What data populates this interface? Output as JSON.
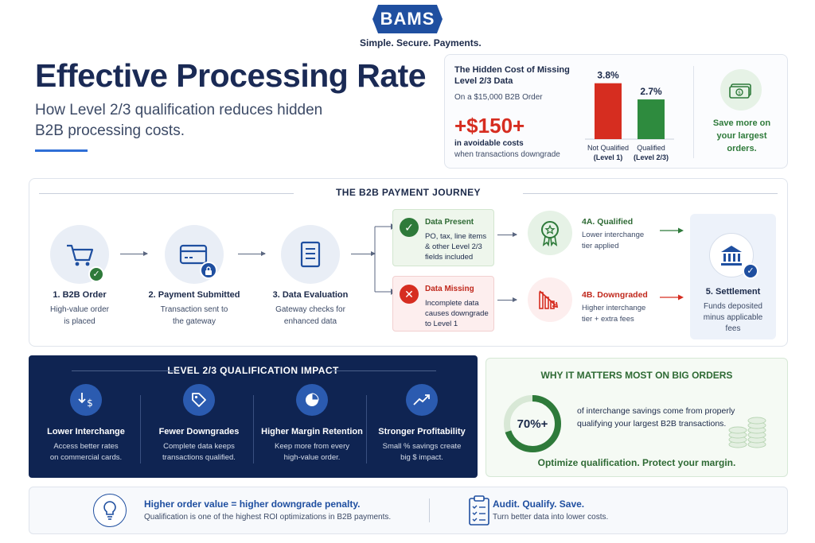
{
  "brand": {
    "logo_text": "BAMS",
    "tagline": "Simple. Secure. Payments."
  },
  "hero": {
    "title": "Effective Processing Rate",
    "subtitle": "How Level 2/3 qualification reduces hidden B2B processing costs."
  },
  "hidden_cost": {
    "title": "The Hidden Cost of Missing Level 2/3 Data",
    "order": "On a $15,000 B2B Order",
    "amount": "+$150+",
    "desc_line1": "in avoidable costs",
    "desc_line2": "when transactions downgrade",
    "save_text": "Save more on your largest orders.",
    "icon": "money-icon",
    "colors": {
      "not_qualified": "#d62d20",
      "qualified": "#2e8b3e"
    }
  },
  "chart_data": {
    "type": "bar",
    "categories": [
      "Not Qualified (Level 1)",
      "Qualified (Level 2/3)"
    ],
    "category_lines": [
      [
        "Not Qualified",
        "(Level 1)"
      ],
      [
        "Qualified",
        "(Level 2/3)"
      ]
    ],
    "values": [
      3.8,
      2.7
    ],
    "value_labels": [
      "3.8%",
      "2.7%"
    ],
    "ylim": [
      0,
      4
    ]
  },
  "journey": {
    "title": "THE B2B PAYMENT JOURNEY",
    "steps": [
      {
        "title": "1. B2B Order",
        "desc1": "High-value order",
        "desc2": "is placed",
        "icon": "cart-icon"
      },
      {
        "title": "2. Payment Submitted",
        "desc1": "Transaction sent to",
        "desc2": "the gateway",
        "icon": "card-icon"
      },
      {
        "title": "3. Data Evaluation",
        "desc1": "Gateway checks for",
        "desc2": "enhanced data",
        "icon": "document-icon"
      }
    ],
    "present": {
      "label": "Data Present",
      "line1": "PO, tax, line items",
      "line2": "& other Level 2/3",
      "line3": "fields included"
    },
    "missing": {
      "label": "Data Missing",
      "line1": "Incomplete data",
      "line2": "causes downgrade",
      "line3": "to Level 1"
    },
    "qualified": {
      "label": "4A. Qualified",
      "line1": "Lower interchange",
      "line2": "tier applied"
    },
    "downgraded": {
      "label": "4B. Downgraded",
      "line1": "Higher interchange",
      "line2": "tier + extra fees"
    },
    "settlement": {
      "title": "5. Settlement",
      "line1": "Funds deposited",
      "line2": "minus applicable",
      "line3": "fees"
    }
  },
  "impact": {
    "title": "LEVEL 2/3 QUALIFICATION IMPACT",
    "items": [
      {
        "title": "Lower Interchange",
        "desc1": "Access better rates",
        "desc2": "on commercial cards.",
        "icon": "dollar-down-icon"
      },
      {
        "title": "Fewer Downgrades",
        "desc1": "Complete data keeps",
        "desc2": "transactions qualified.",
        "icon": "tag-icon"
      },
      {
        "title": "Higher Margin Retention",
        "desc1": "Keep more from every",
        "desc2": "high-value order.",
        "icon": "pie-icon"
      },
      {
        "title": "Stronger Profitability",
        "desc1": "Small % savings create",
        "desc2": "big $ impact.",
        "icon": "trend-icon"
      }
    ]
  },
  "big_orders": {
    "title": "WHY IT MATTERS MOST ON BIG ORDERS",
    "percent": "70%+",
    "ring_fraction": 0.7,
    "desc": "of interchange savings come from properly qualifying your largest B2B transactions.",
    "footer": "Optimize qualification. Protect your margin."
  },
  "footer": {
    "left_title": "Higher order value = higher downgrade penalty.",
    "left_desc": "Qualification is one of the highest ROI optimizations in B2B payments.",
    "right_title": "Audit. Qualify. Save.",
    "right_desc": "Turn better data into lower costs."
  }
}
